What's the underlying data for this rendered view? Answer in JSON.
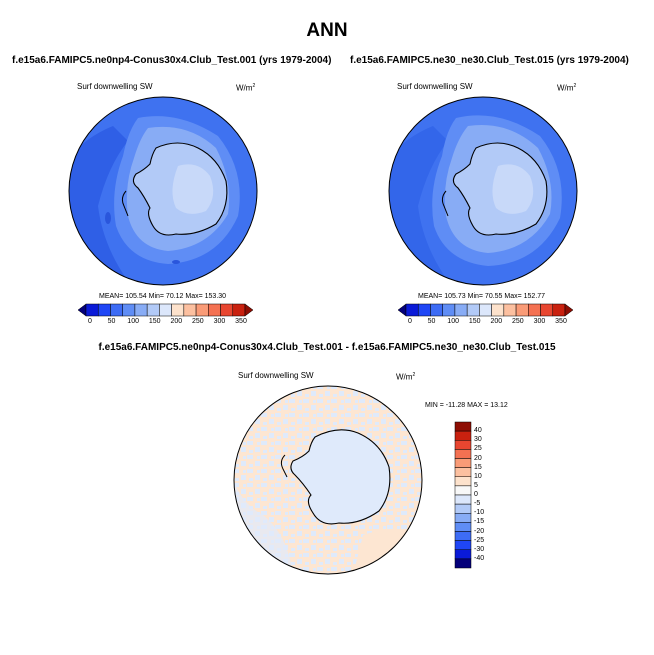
{
  "title": "ANN",
  "panels": [
    {
      "title": "f.e15a6.FAMIPC5.ne0np4-Conus30x4.Club_Test.001 (yrs 1979-2004)",
      "field_label": "Surf downwelling SW",
      "units": "W/m",
      "units_sup": "2",
      "stats": "MEAN= 105.54  Min=  70.12  Max= 153.30"
    },
    {
      "title": "f.e15a6.FAMIPC5.ne30_ne30.Club_Test.015 (yrs 1979-2004)",
      "field_label": "Surf downwelling SW",
      "units": "W/m",
      "units_sup": "2",
      "stats": "MEAN= 105.73  Min=  70.55  Max= 152.77"
    }
  ],
  "diff_panel": {
    "title": "f.e15a6.FAMIPC5.ne0np4-Conus30x4.Club_Test.001 - f.e15a6.FAMIPC5.ne30_ne30.Club_Test.015",
    "field_label": "Surf downwelling SW",
    "units": "W/m",
    "units_sup": "2",
    "stats": "MIN = -11.28 MAX =  13.12"
  },
  "colorbar_main": {
    "ticks": [
      "0",
      "50",
      "100",
      "150",
      "200",
      "250",
      "300",
      "350"
    ],
    "colors": [
      "#04007a",
      "#0a1ad8",
      "#1f46f5",
      "#3d6cf5",
      "#5f8df5",
      "#88acf5",
      "#b2caf7",
      "#dce7fb",
      "#fde2cc",
      "#fcc0a0",
      "#f99b77",
      "#f47152",
      "#e84630",
      "#c9210f",
      "#8e0d03"
    ]
  },
  "colorbar_diff": {
    "labels": [
      "40",
      "30",
      "25",
      "20",
      "15",
      "10",
      "5",
      "0",
      "-5",
      "-10",
      "-15",
      "-20",
      "-25",
      "-30",
      "-40"
    ],
    "colors": [
      "#8e0d03",
      "#c9210f",
      "#e84630",
      "#f47152",
      "#f99b77",
      "#fcc0a0",
      "#fde2cc",
      "#f8f8f8",
      "#dce7fb",
      "#b2caf7",
      "#88acf5",
      "#5f8df5",
      "#3d6cf5",
      "#1f46f5",
      "#0a1ad8",
      "#04007a"
    ]
  }
}
